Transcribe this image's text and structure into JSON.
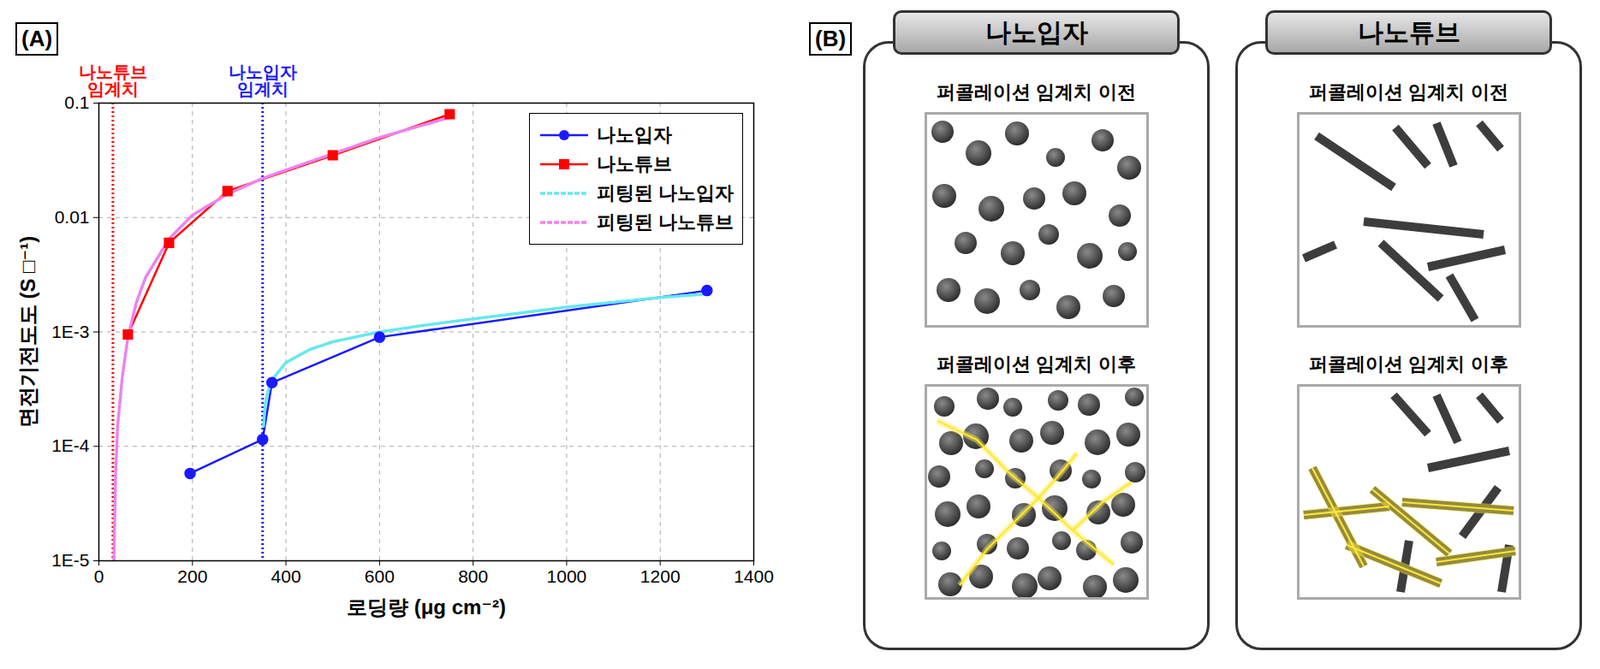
{
  "chart_data": {
    "type": "line",
    "panel_label": "(A)",
    "x_label": "로딩량 (μg cm⁻²)",
    "y_label": "면전기전도도 (S □⁻¹)",
    "log": "y",
    "grid": true,
    "legend": "top-right",
    "xlim": [
      0,
      1400
    ],
    "xticks": [
      0,
      200,
      400,
      600,
      800,
      1000,
      1200,
      1400
    ],
    "ylim": [
      1e-05,
      0.1
    ],
    "yticks": [
      {
        "value": 1e-05,
        "label": "1E-5"
      },
      {
        "value": 0.0001,
        "label": "1E-4"
      },
      {
        "value": 0.001,
        "label": "1E-3"
      },
      0.01,
      0.1
    ],
    "thresholds": [
      {
        "x": 30,
        "label": "나노튜브 임계치",
        "color": "#ff0000"
      },
      {
        "x": 350,
        "label": "나노입자 임계치",
        "color": "#1a1aff"
      }
    ],
    "series": [
      {
        "name": "나노입자",
        "color": "#1a1aff",
        "marker": "circle",
        "line_style": "solid",
        "x": [
          195,
          350,
          370,
          600,
          1300
        ],
        "values": [
          5.8e-05,
          0.000115,
          0.00036,
          0.0009,
          0.0023
        ]
      },
      {
        "name": "나노튜브",
        "color": "#ff0000",
        "marker": "square",
        "line_style": "solid",
        "x": [
          62,
          150,
          275,
          500,
          750
        ],
        "values": [
          0.00095,
          0.006,
          0.017,
          0.035,
          0.08
        ]
      },
      {
        "name": "피팅된 나노입자",
        "color": "#66e8f0",
        "line_style": "dashed",
        "x": [
          352,
          355,
          360,
          370,
          400,
          450,
          500,
          600,
          700,
          800,
          1000,
          1200,
          1300
        ],
        "values": [
          0.00015,
          0.00022,
          0.00029,
          0.00038,
          0.00054,
          0.0007,
          0.00082,
          0.001,
          0.00115,
          0.0013,
          0.00165,
          0.002,
          0.00215
        ]
      },
      {
        "name": "피팅된 나노튜브",
        "color": "#ee82ee",
        "line_style": "dashed",
        "x": [
          32,
          36,
          40,
          50,
          62,
          80,
          100,
          150,
          200,
          275,
          350,
          400,
          500,
          600,
          750
        ],
        "values": [
          1e-05,
          6e-05,
          0.00015,
          0.0004,
          0.0009,
          0.0018,
          0.003,
          0.0065,
          0.0105,
          0.016,
          0.022,
          0.026,
          0.036,
          0.05,
          0.075
        ]
      }
    ]
  },
  "diagram": {
    "panel_label": "(B)",
    "panels": [
      {
        "title": "나노입자",
        "before": "퍼콜레이션 임계치 이전",
        "after": "퍼콜레이션 임계치 이후"
      },
      {
        "title": "나노튜브",
        "before": "퍼콜레이션 임계치 이전",
        "after": "퍼콜레이션 임계치 이후"
      }
    ]
  }
}
